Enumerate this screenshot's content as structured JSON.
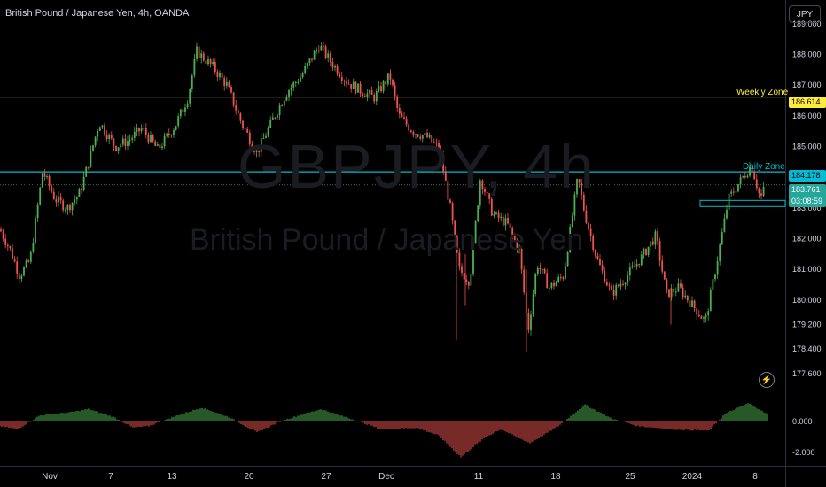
{
  "header": {
    "title": "British Pound / Japanese Yen, 4h, OANDA",
    "currency_button": "JPY"
  },
  "watermark": {
    "symbol": "GBPJPY, 4h",
    "name": "British Pound / Japanese Yen"
  },
  "colors": {
    "up": "#26a69a",
    "up_bright": "#4caf50",
    "down": "#ef5350",
    "weekly_zone": "#ffeb3b",
    "daily_zone": "#00bcd4",
    "bg": "#000000",
    "axis_text": "#d1d4dc"
  },
  "zones": {
    "weekly": {
      "label": "Weekly Zone",
      "price": 186.614,
      "price_label": "186.614"
    },
    "daily": {
      "label": "Daily Zone",
      "price": 184.178,
      "price_label": "184.178"
    },
    "current": {
      "price": 183.761,
      "price_label": "183.761",
      "countdown": "03:08:59"
    }
  },
  "price_axis": {
    "ticks": [
      {
        "label": "189.000",
        "value": 189.0
      },
      {
        "label": "188.000",
        "value": 188.0
      },
      {
        "label": "187.000",
        "value": 187.0
      },
      {
        "label": "186.000",
        "value": 186.0
      },
      {
        "label": "185.000",
        "value": 185.0
      },
      {
        "label": "183.000",
        "value": 183.0
      },
      {
        "label": "182.000",
        "value": 182.0
      },
      {
        "label": "181.000",
        "value": 181.0
      },
      {
        "label": "180.000",
        "value": 180.0
      },
      {
        "label": "179.200",
        "value": 179.2
      },
      {
        "label": "178.400",
        "value": 178.4
      },
      {
        "label": "177.600",
        "value": 177.6
      }
    ]
  },
  "osc_axis": {
    "ticks": [
      {
        "label": "0.000",
        "value": 0
      },
      {
        "label": "-2.000",
        "value": -2
      }
    ]
  },
  "time_axis": {
    "labels": [
      "Nov",
      "7",
      "13",
      "20",
      "27",
      "Dec",
      "11",
      "18",
      "25",
      "2024",
      "8"
    ]
  },
  "chart_data": {
    "type": "candlestick",
    "interval": "4h",
    "price_range": [
      177.4,
      189.1
    ],
    "anchors": [
      [
        0,
        182.3
      ],
      [
        12,
        181.6
      ],
      [
        22,
        180.8
      ],
      [
        34,
        181.3
      ],
      [
        48,
        184.2
      ],
      [
        62,
        183.3
      ],
      [
        76,
        183.0
      ],
      [
        90,
        183.5
      ],
      [
        100,
        184.5
      ],
      [
        112,
        185.8
      ],
      [
        130,
        185.0
      ],
      [
        145,
        185.2
      ],
      [
        160,
        185.6
      ],
      [
        178,
        184.9
      ],
      [
        198,
        185.7
      ],
      [
        212,
        186.6
      ],
      [
        222,
        188.1
      ],
      [
        240,
        187.6
      ],
      [
        256,
        187.0
      ],
      [
        272,
        185.8
      ],
      [
        290,
        184.8
      ],
      [
        308,
        185.9
      ],
      [
        324,
        186.8
      ],
      [
        340,
        187.3
      ],
      [
        360,
        188.3
      ],
      [
        375,
        187.7
      ],
      [
        392,
        187.1
      ],
      [
        408,
        186.8
      ],
      [
        422,
        186.6
      ],
      [
        440,
        187.3
      ],
      [
        450,
        186.0
      ],
      [
        466,
        185.5
      ],
      [
        482,
        185.3
      ],
      [
        496,
        184.9
      ],
      [
        508,
        183.0
      ],
      [
        518,
        181.0
      ],
      [
        530,
        180.6
      ],
      [
        542,
        184.0
      ],
      [
        556,
        182.8
      ],
      [
        572,
        182.5
      ],
      [
        586,
        181.6
      ],
      [
        596,
        179.0
      ],
      [
        606,
        181.2
      ],
      [
        620,
        180.4
      ],
      [
        636,
        180.8
      ],
      [
        652,
        184.0
      ],
      [
        660,
        182.8
      ],
      [
        674,
        181.3
      ],
      [
        690,
        180.2
      ],
      [
        708,
        180.8
      ],
      [
        724,
        181.4
      ],
      [
        740,
        182.1
      ],
      [
        752,
        180.2
      ],
      [
        766,
        180.4
      ],
      [
        782,
        179.8
      ],
      [
        796,
        179.3
      ],
      [
        808,
        181.1
      ],
      [
        822,
        183.3
      ],
      [
        838,
        184.0
      ],
      [
        848,
        184.4
      ],
      [
        858,
        183.3
      ],
      [
        864,
        183.76
      ]
    ],
    "oscillator": [
      [
        0,
        -0.3
      ],
      [
        20,
        -0.5
      ],
      [
        45,
        0.4
      ],
      [
        80,
        0.6
      ],
      [
        100,
        0.8
      ],
      [
        128,
        0.3
      ],
      [
        150,
        -0.4
      ],
      [
        168,
        -0.3
      ],
      [
        200,
        0.4
      ],
      [
        228,
        0.9
      ],
      [
        258,
        0.3
      ],
      [
        290,
        -0.7
      ],
      [
        320,
        0.1
      ],
      [
        362,
        0.8
      ],
      [
        400,
        0.1
      ],
      [
        430,
        -0.5
      ],
      [
        470,
        -0.4
      ],
      [
        495,
        -0.9
      ],
      [
        520,
        -2.3
      ],
      [
        548,
        -1.0
      ],
      [
        565,
        -0.5
      ],
      [
        598,
        -1.4
      ],
      [
        630,
        -0.3
      ],
      [
        660,
        1.1
      ],
      [
        690,
        0.2
      ],
      [
        720,
        -0.3
      ],
      [
        760,
        -0.5
      ],
      [
        800,
        -0.6
      ],
      [
        818,
        0.5
      ],
      [
        845,
        1.2
      ],
      [
        865,
        0.5
      ]
    ],
    "oscillator_range": [
      -2.5,
      1.5
    ]
  }
}
